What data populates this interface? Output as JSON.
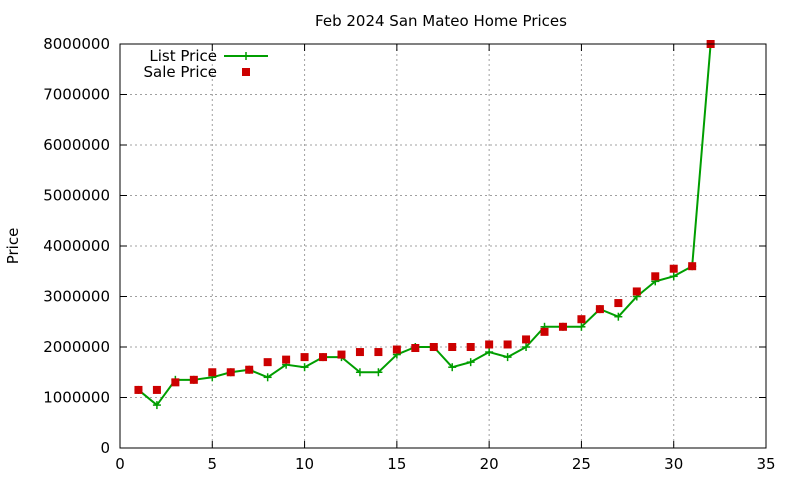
{
  "chart_data": {
    "type": "line",
    "title": "Feb 2024 San Mateo Home Prices",
    "xlabel": "",
    "ylabel": "Price",
    "xlim": [
      0,
      35
    ],
    "ylim": [
      0,
      8000000
    ],
    "xticks": [
      0,
      5,
      10,
      15,
      20,
      25,
      30,
      35
    ],
    "yticks": [
      0,
      1000000,
      2000000,
      3000000,
      4000000,
      5000000,
      6000000,
      7000000,
      8000000
    ],
    "grid": true,
    "legend_position": "top-left",
    "series": [
      {
        "name": "List Price",
        "style": "line-with-plus-markers",
        "color": "#009e00",
        "x": [
          1,
          2,
          3,
          4,
          5,
          6,
          7,
          8,
          9,
          10,
          11,
          12,
          13,
          14,
          15,
          16,
          17,
          18,
          19,
          20,
          21,
          22,
          23,
          24,
          25,
          26,
          27,
          28,
          29,
          30,
          31,
          32
        ],
        "values": [
          1150000,
          850000,
          1350000,
          1350000,
          1400000,
          1500000,
          1550000,
          1400000,
          1650000,
          1600000,
          1800000,
          1800000,
          1500000,
          1500000,
          1850000,
          2000000,
          2000000,
          1600000,
          1700000,
          1900000,
          1800000,
          2000000,
          2400000,
          2400000,
          2400000,
          2750000,
          2600000,
          3000000,
          3300000,
          3400000,
          3600000,
          8000000
        ]
      },
      {
        "name": "Sale Price",
        "style": "square-markers",
        "color": "#cc0000",
        "x": [
          1,
          2,
          3,
          4,
          5,
          6,
          7,
          8,
          9,
          10,
          11,
          12,
          13,
          14,
          15,
          16,
          17,
          18,
          19,
          20,
          21,
          22,
          23,
          24,
          25,
          26,
          27,
          28,
          29,
          30,
          31,
          32
        ],
        "values": [
          1150000,
          1150000,
          1300000,
          1350000,
          1500000,
          1500000,
          1550000,
          1700000,
          1750000,
          1800000,
          1800000,
          1850000,
          1900000,
          1900000,
          1950000,
          1980000,
          2000000,
          2000000,
          2000000,
          2050000,
          2050000,
          2150000,
          2300000,
          2400000,
          2550000,
          2750000,
          2870000,
          3100000,
          3400000,
          3550000,
          3600000,
          8000000
        ]
      }
    ]
  }
}
